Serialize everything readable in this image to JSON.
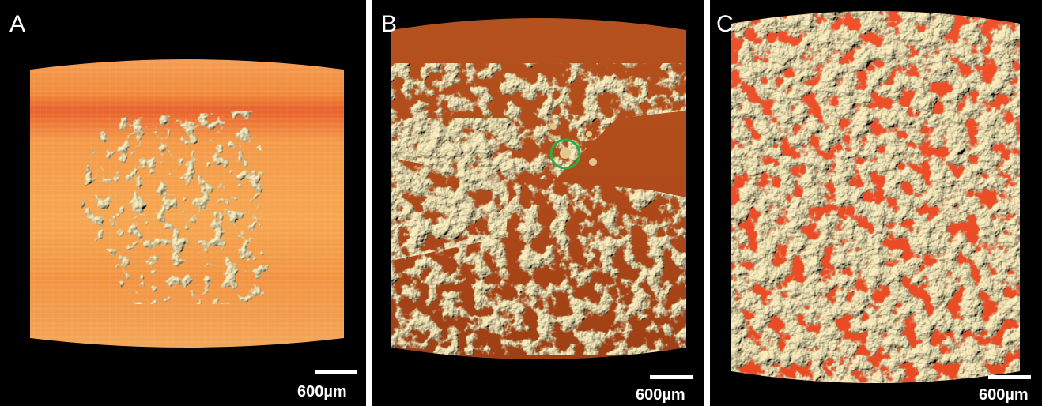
{
  "panels": [
    {
      "label": "A",
      "scale_bar": "600µm"
    },
    {
      "label": "B",
      "scale_bar": "600µm"
    },
    {
      "label": "C",
      "scale_bar": "600µm"
    }
  ]
}
